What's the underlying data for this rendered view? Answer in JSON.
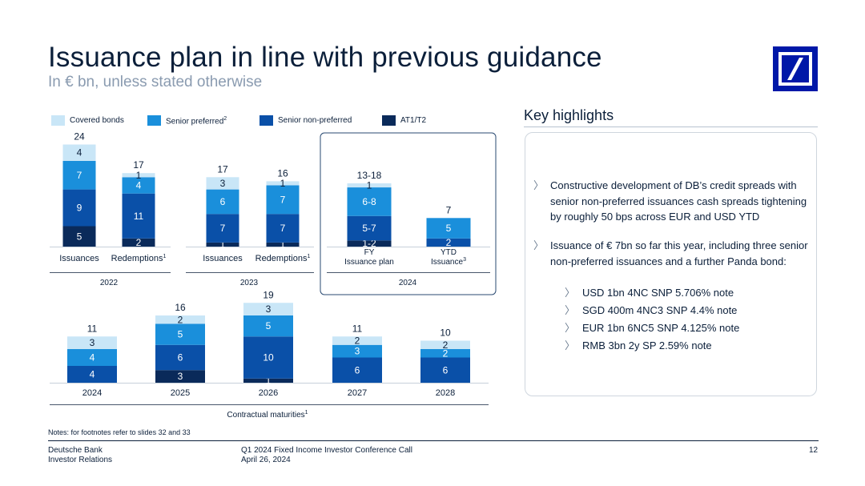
{
  "header": {
    "title": "Issuance plan in line with previous guidance",
    "subtitle": "In € bn, unless stated otherwise"
  },
  "colors": {
    "covered": "#c9e6f7",
    "senior_preferred": "#1a8fdb",
    "senior_non_preferred": "#0a50a8",
    "at1_t2": "#0a2a5a",
    "brand": "#0018a8"
  },
  "legend": [
    {
      "label": "Covered bonds",
      "sup": "",
      "color": "#c9e6f7"
    },
    {
      "label": "Senior preferred",
      "sup": "2",
      "color": "#1a8fdb"
    },
    {
      "label": "Senior non-preferred",
      "sup": "",
      "color": "#0a50a8"
    },
    {
      "label": "AT1/T2",
      "sup": "",
      "color": "#0a2a5a"
    }
  ],
  "chart_data": [
    {
      "type": "bar",
      "stacked": true,
      "group": "2022",
      "categories": [
        "Issuances",
        "Redemptions"
      ],
      "category_superscripts": [
        "",
        "1"
      ],
      "series": [
        {
          "name": "AT1/T2",
          "values": [
            5,
            2
          ]
        },
        {
          "name": "Senior non-preferred",
          "values": [
            9,
            11
          ]
        },
        {
          "name": "Senior preferred",
          "values": [
            7,
            4
          ]
        },
        {
          "name": "Covered bonds",
          "values": [
            4,
            1
          ]
        }
      ],
      "totals": [
        "24",
        "17"
      ]
    },
    {
      "type": "bar",
      "stacked": true,
      "group": "2023",
      "categories": [
        "Issuances",
        "Redemptions"
      ],
      "category_superscripts": [
        "",
        "1"
      ],
      "series": [
        {
          "name": "AT1/T2",
          "values": [
            1,
            1
          ]
        },
        {
          "name": "Senior non-preferred",
          "values": [
            7,
            7
          ]
        },
        {
          "name": "Senior preferred",
          "values": [
            6,
            7
          ]
        },
        {
          "name": "Covered bonds",
          "values": [
            3,
            1
          ]
        }
      ],
      "totals": [
        "17",
        "16"
      ]
    },
    {
      "type": "bar",
      "stacked": true,
      "group": "2024",
      "categories": [
        "FY\nIssuance plan",
        "YTD\nIssuance"
      ],
      "category_superscripts": [
        "",
        "3"
      ],
      "series": [
        {
          "name": "AT1/T2",
          "values": [
            1.5,
            0
          ],
          "labels": [
            "1-2",
            ""
          ]
        },
        {
          "name": "Senior non-preferred",
          "values": [
            6,
            2
          ],
          "labels": [
            "5-7",
            "2"
          ]
        },
        {
          "name": "Senior preferred",
          "values": [
            7,
            5
          ],
          "labels": [
            "6-8",
            "5"
          ]
        },
        {
          "name": "Covered bonds",
          "values": [
            1,
            0
          ],
          "labels": [
            "1",
            ""
          ]
        }
      ],
      "totals": [
        "13-18",
        "7"
      ]
    },
    {
      "type": "bar",
      "stacked": true,
      "group": "Contractual maturities",
      "group_superscript": "1",
      "categories": [
        "2024",
        "2025",
        "2026",
        "2027",
        "2028"
      ],
      "series": [
        {
          "name": "AT1/T2",
          "values": [
            0,
            3,
            1,
            0,
            0
          ]
        },
        {
          "name": "Senior non-preferred",
          "values": [
            4,
            6,
            10,
            6,
            6
          ]
        },
        {
          "name": "Senior preferred",
          "values": [
            4,
            5,
            5,
            3,
            2
          ]
        },
        {
          "name": "Covered bonds",
          "values": [
            3,
            2,
            3,
            2,
            2
          ]
        }
      ],
      "totals": [
        "11",
        "16",
        "19",
        "11",
        "10"
      ]
    }
  ],
  "highlights": {
    "title": "Key highlights",
    "bullets": [
      "Constructive development of DB’s credit spreads with senior non-preferred issuances cash spreads tightening by roughly 50 bps across EUR and USD YTD",
      "Issuance of € 7bn so far this year, including three senior non-preferred issuances and a further Panda bond:"
    ],
    "sub_bullets": [
      "USD 1bn 4NC SNP 5.706% note",
      "SGD 400m 4NC3 SNP 4.4% note",
      "EUR 1bn 6NC5 SNP 4.125% note",
      "RMB 3bn 2y SP 2.59% note"
    ],
    "chevron": "〉"
  },
  "notes": "Notes: for footnotes refer to slides 32 and 33",
  "footer": {
    "company": "Deutsche Bank",
    "department": "Investor Relations",
    "event": "Q1 2024 Fixed Income Investor Conference Call",
    "date": "April 26, 2024",
    "page": "12"
  }
}
